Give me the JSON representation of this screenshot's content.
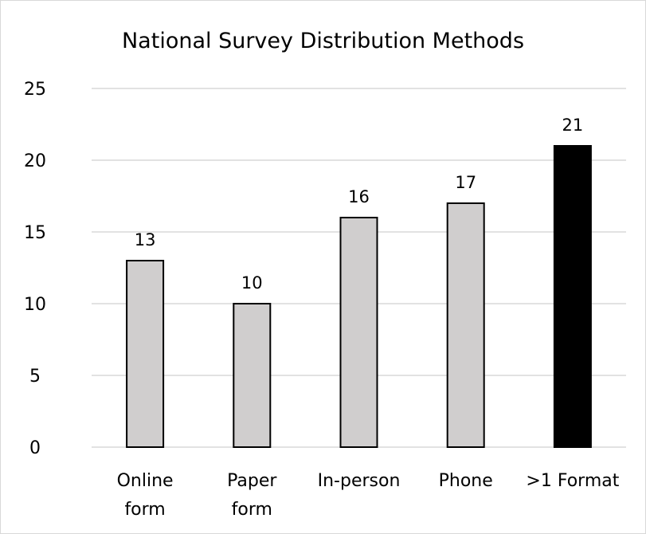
{
  "chart_data": {
    "type": "bar",
    "title": "National Survey Distribution Methods",
    "categories": [
      [
        "Online",
        "form"
      ],
      [
        "Paper",
        "form"
      ],
      [
        "In-person"
      ],
      [
        "Phone"
      ],
      [
        ">1 Format"
      ]
    ],
    "values": [
      13,
      10,
      16,
      17,
      21
    ],
    "data_labels": [
      "13",
      "10",
      "16",
      "17",
      "21"
    ],
    "highlight_index": 4,
    "ylim": [
      0,
      25
    ],
    "yticks": [
      0,
      5,
      10,
      15,
      20,
      25
    ],
    "grid": true,
    "legend": false,
    "xlabel": "",
    "ylabel": ""
  },
  "colors": {
    "bar_fill": "#d0cece",
    "bar_highlight": "#000000",
    "bar_stroke": "#000000",
    "gridline": "#d9d9d9",
    "text": "#000000"
  }
}
